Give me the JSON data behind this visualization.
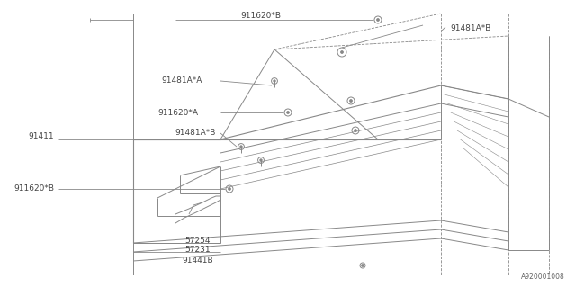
{
  "bg_color": "#ffffff",
  "line_color": "#888888",
  "font_size": 6.5,
  "watermark": "A920001008",
  "labels": {
    "91162QB_top": "911620*B",
    "91481A_A": "91481A*A",
    "91162QA": "911620*A",
    "91481A_B_mid": "91481A*B",
    "91411": "91411",
    "91162QB_bot": "911620*B",
    "57254": "57254",
    "57231": "57231",
    "91441B": "91441B",
    "91481A_B_top": "91481A*B"
  }
}
